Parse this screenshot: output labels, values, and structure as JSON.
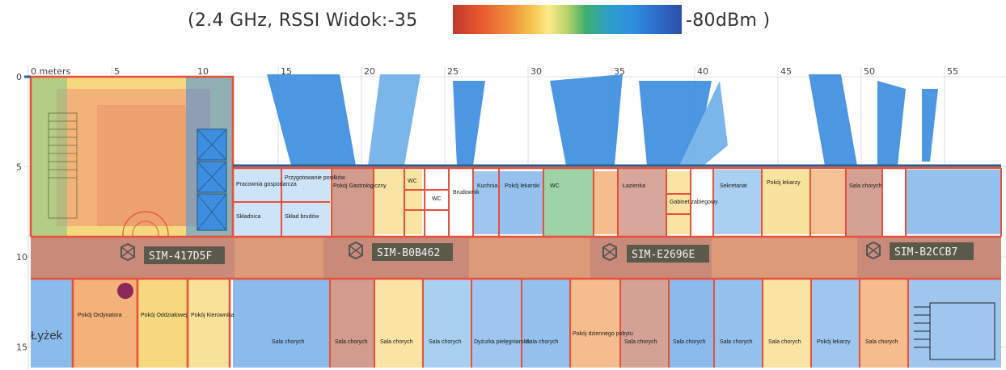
{
  "legend": {
    "left_text": "(2.4  GHz,  RSSI  Widok:-35",
    "right_text": "-80dBm )",
    "gradient_colors": [
      "#c0392b",
      "#e8582e",
      "#f08a3a",
      "#f5c24b",
      "#fbe98a",
      "#b8d36a",
      "#3fae6a",
      "#2c9fc8",
      "#2f8fe0",
      "#2f6bc8",
      "#2a4fa8"
    ]
  },
  "axis": {
    "x_ticks": [
      "0 meters",
      "5",
      "10",
      "15",
      "20",
      "25",
      "30",
      "35",
      "40",
      "45",
      "50",
      "55"
    ],
    "y_ticks": [
      "0",
      "5",
      "10",
      "15"
    ]
  },
  "access_points": [
    {
      "name": "SIM-417D5F"
    },
    {
      "name": "SIM-B0B462"
    },
    {
      "name": "SIM-E2696E"
    },
    {
      "name": "SIM-B2CCB7"
    }
  ],
  "rooms_top": [
    "Pracownia gospodarcza",
    "Przygotowanie posiłków",
    "Składnica",
    "Skład brudów",
    "Pokój Gastrologiczny",
    "WC",
    "WC",
    "Brudownik",
    "Kuchnia",
    "Pokój lekarski",
    "WC",
    "Łazienka",
    "Gabinet zabiegowy",
    "Sekretariat",
    "Pokój lekarzy",
    "Sala chorych"
  ],
  "rooms_bottom": [
    "Pokój Ordynatora",
    "Pokój Oddziałowej",
    "Pokój Kierownika",
    "Sala chorych",
    "Sala chorych",
    "Sala chorych",
    "Sala chorych",
    "Dyżurka pielęgniarska",
    "Sala chorych",
    "Pokój dziennego pobytu",
    "Sala chorych",
    "Sala chorych",
    "Sala chorych",
    "Sala chorych",
    "Pokój lekarzy",
    "Sala chorych"
  ],
  "corner_label": "Łyżek",
  "colors": {
    "wall": "#e8503a",
    "wall_dark": "#2c5f8a",
    "hot": "#c98a7a",
    "warm": "#f3b27a",
    "yellow": "#f6d97e",
    "green": "#7dc38a",
    "blue": "#3d8ee0",
    "light_blue": "#6fb0e8",
    "ap_label_bg": "#5b5a4a"
  }
}
